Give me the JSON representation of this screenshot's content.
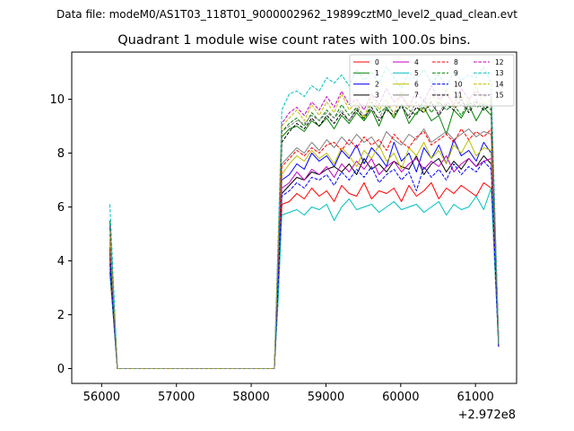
{
  "figure": {
    "suptitle": "Data file: modeM0/AS1T03_118T01_9000002962_19899cztM0_level2_quad_clean.evt"
  },
  "chart_data": {
    "type": "line",
    "title": "Quadrant 1 module wise count rates with 100.0s bins.",
    "xlabel": "",
    "ylabel": "",
    "x_offset_label": "+2.972e8",
    "xlim": [
      55600,
      61550
    ],
    "ylim": [
      -0.55,
      11.75
    ],
    "xticks": [
      56000,
      57000,
      58000,
      59000,
      60000,
      61000
    ],
    "yticks": [
      0,
      2,
      4,
      6,
      8,
      10
    ],
    "grid": false,
    "legend": {
      "placement": "top-right",
      "columns": 4
    },
    "x": [
      56110,
      56210,
      56310,
      56410,
      56510,
      56610,
      56710,
      56810,
      56910,
      57010,
      57110,
      57210,
      57310,
      57410,
      57510,
      57610,
      57710,
      57810,
      57910,
      58010,
      58110,
      58210,
      58310,
      58360,
      58410,
      58510,
      58610,
      58710,
      58810,
      58910,
      59010,
      59110,
      59210,
      59310,
      59410,
      59510,
      59610,
      59710,
      59810,
      59910,
      60010,
      60110,
      60210,
      60310,
      60410,
      60510,
      60610,
      60710,
      60810,
      60910,
      61010,
      61110,
      61210,
      61310
    ],
    "series": [
      {
        "name": "0",
        "color": "#ff0000",
        "dash": false,
        "values": [
          4.1,
          0,
          0,
          0,
          0,
          0,
          0,
          0,
          0,
          0,
          0,
          0,
          0,
          0,
          0,
          0,
          0,
          0,
          0,
          0,
          0,
          0,
          0,
          2.6,
          6.1,
          6.2,
          6.5,
          6.3,
          6.7,
          6.4,
          6.6,
          6.2,
          6.8,
          6.5,
          6.4,
          6.9,
          6.3,
          6.6,
          6.5,
          6.7,
          6.2,
          6.8,
          6.4,
          6.6,
          6.9,
          6.3,
          6.7,
          6.5,
          6.8,
          6.6,
          6.4,
          6.9,
          6.7,
          0.8
        ]
      },
      {
        "name": "1",
        "color": "#008000",
        "dash": false,
        "values": [
          5.5,
          0,
          0,
          0,
          0,
          0,
          0,
          0,
          0,
          0,
          0,
          0,
          0,
          0,
          0,
          0,
          0,
          0,
          0,
          0,
          0,
          0,
          0,
          4.2,
          8.6,
          8.9,
          9.0,
          8.8,
          9.2,
          9.0,
          9.3,
          8.9,
          9.4,
          9.1,
          9.5,
          9.2,
          9.6,
          9.0,
          9.7,
          9.3,
          9.8,
          9.1,
          9.5,
          9.7,
          9.2,
          9.4,
          8.7,
          9.6,
          9.3,
          9.8,
          9.2,
          9.7,
          9.4,
          0.9
        ]
      },
      {
        "name": "2",
        "color": "#0000ff",
        "dash": false,
        "values": [
          4.3,
          0,
          0,
          0,
          0,
          0,
          0,
          0,
          0,
          0,
          0,
          0,
          0,
          0,
          0,
          0,
          0,
          0,
          0,
          0,
          0,
          0,
          0,
          3.4,
          7.0,
          7.2,
          7.6,
          7.4,
          8.0,
          7.7,
          7.9,
          7.5,
          8.1,
          7.8,
          8.3,
          7.6,
          8.2,
          7.9,
          7.5,
          8.4,
          7.7,
          8.0,
          7.3,
          8.2,
          7.8,
          8.3,
          7.6,
          8.5,
          7.9,
          8.1,
          7.7,
          8.4,
          8.0,
          0.8
        ]
      },
      {
        "name": "3",
        "color": "#000000",
        "dash": false,
        "values": [
          3.6,
          0,
          0,
          0,
          0,
          0,
          0,
          0,
          0,
          0,
          0,
          0,
          0,
          0,
          0,
          0,
          0,
          0,
          0,
          0,
          0,
          0,
          0,
          3.2,
          6.5,
          6.8,
          7.1,
          7.0,
          7.3,
          7.2,
          7.4,
          7.5,
          7.3,
          7.6,
          7.2,
          7.8,
          7.4,
          7.6,
          7.3,
          7.7,
          7.5,
          7.4,
          7.9,
          7.2,
          7.6,
          7.8,
          7.3,
          7.7,
          7.4,
          7.8,
          7.5,
          7.9,
          7.6,
          0.8
        ]
      },
      {
        "name": "4",
        "color": "#c000c0",
        "dash": false,
        "values": [
          5.0,
          0,
          0,
          0,
          0,
          0,
          0,
          0,
          0,
          0,
          0,
          0,
          0,
          0,
          0,
          0,
          0,
          0,
          0,
          0,
          0,
          0,
          0,
          3.0,
          6.7,
          6.9,
          7.3,
          7.0,
          7.4,
          7.2,
          7.5,
          7.1,
          7.6,
          7.3,
          7.7,
          7.4,
          7.8,
          7.2,
          7.5,
          7.7,
          7.3,
          7.6,
          7.8,
          7.4,
          7.7,
          7.5,
          7.9,
          7.3,
          7.6,
          7.8,
          7.5,
          7.7,
          7.8,
          0.8
        ]
      },
      {
        "name": "5",
        "color": "#00bfbf",
        "dash": false,
        "values": [
          3.8,
          0,
          0,
          0,
          0,
          0,
          0,
          0,
          0,
          0,
          0,
          0,
          0,
          0,
          0,
          0,
          0,
          0,
          0,
          0,
          0,
          0,
          0,
          2.5,
          5.7,
          5.8,
          5.9,
          5.7,
          6.0,
          5.9,
          6.1,
          5.5,
          6.0,
          6.3,
          5.9,
          6.0,
          6.1,
          5.8,
          6.0,
          6.2,
          5.9,
          6.0,
          6.1,
          5.8,
          6.0,
          6.2,
          5.7,
          6.1,
          5.9,
          6.0,
          6.4,
          5.9,
          6.7,
          0.8
        ]
      },
      {
        "name": "6",
        "color": "#bfbf00",
        "dash": false,
        "values": [
          4.6,
          0,
          0,
          0,
          0,
          0,
          0,
          0,
          0,
          0,
          0,
          0,
          0,
          0,
          0,
          0,
          0,
          0,
          0,
          0,
          0,
          0,
          0,
          3.3,
          7.2,
          7.6,
          7.9,
          7.7,
          8.1,
          7.8,
          8.0,
          7.6,
          8.2,
          7.9,
          7.5,
          8.1,
          7.8,
          8.3,
          7.7,
          8.0,
          7.4,
          8.2,
          7.9,
          8.4,
          7.8,
          8.1,
          7.6,
          8.3,
          8.0,
          8.5,
          7.9,
          8.2,
          8.1,
          0.8
        ]
      },
      {
        "name": "7",
        "color": "#808080",
        "dash": false,
        "values": [
          4.8,
          0,
          0,
          0,
          0,
          0,
          0,
          0,
          0,
          0,
          0,
          0,
          0,
          0,
          0,
          0,
          0,
          0,
          0,
          0,
          0,
          0,
          0,
          3.7,
          7.6,
          7.9,
          8.2,
          8.0,
          8.4,
          8.1,
          8.5,
          8.2,
          8.6,
          8.3,
          8.7,
          8.4,
          8.6,
          8.2,
          8.8,
          8.5,
          8.3,
          8.7,
          8.5,
          8.9,
          8.4,
          8.6,
          8.8,
          8.5,
          8.7,
          8.9,
          8.6,
          8.8,
          8.7,
          0.8
        ]
      },
      {
        "name": "8",
        "color": "#ff0000",
        "dash": true,
        "values": [
          4.4,
          0,
          0,
          0,
          0,
          0,
          0,
          0,
          0,
          0,
          0,
          0,
          0,
          0,
          0,
          0,
          0,
          0,
          0,
          0,
          0,
          0,
          0,
          3.5,
          7.5,
          7.8,
          8.1,
          7.9,
          8.2,
          8.0,
          8.3,
          8.4,
          8.1,
          8.5,
          8.2,
          8.6,
          8.3,
          8.5,
          8.1,
          8.7,
          8.4,
          8.2,
          8.6,
          8.8,
          8.3,
          8.5,
          8.7,
          8.4,
          8.9,
          8.5,
          8.8,
          8.6,
          8.9,
          0.9
        ]
      },
      {
        "name": "9",
        "color": "#008000",
        "dash": true,
        "values": [
          5.2,
          0,
          0,
          0,
          0,
          0,
          0,
          0,
          0,
          0,
          0,
          0,
          0,
          0,
          0,
          0,
          0,
          0,
          0,
          0,
          0,
          0,
          0,
          4.3,
          8.8,
          9.1,
          9.3,
          9.0,
          9.5,
          9.2,
          9.6,
          9.3,
          9.8,
          9.4,
          9.7,
          9.2,
          9.9,
          9.5,
          9.7,
          9.3,
          9.8,
          9.6,
          9.4,
          10.0,
          9.5,
          9.9,
          9.6,
          9.8,
          9.4,
          9.9,
          9.7,
          9.8,
          9.6,
          1.0
        ]
      },
      {
        "name": "10",
        "color": "#0000ff",
        "dash": true,
        "values": [
          3.9,
          0,
          0,
          0,
          0,
          0,
          0,
          0,
          0,
          0,
          0,
          0,
          0,
          0,
          0,
          0,
          0,
          0,
          0,
          0,
          0,
          0,
          0,
          3.1,
          6.4,
          6.6,
          6.9,
          6.7,
          7.1,
          7.0,
          7.2,
          6.8,
          7.3,
          7.0,
          7.4,
          7.1,
          7.5,
          6.9,
          7.2,
          7.4,
          7.0,
          7.3,
          6.6,
          7.5,
          7.1,
          7.4,
          7.0,
          7.6,
          7.2,
          7.5,
          7.3,
          7.7,
          7.4,
          0.8
        ]
      },
      {
        "name": "11",
        "color": "#000000",
        "dash": true,
        "values": [
          4.5,
          0,
          0,
          0,
          0,
          0,
          0,
          0,
          0,
          0,
          0,
          0,
          0,
          0,
          0,
          0,
          0,
          0,
          0,
          0,
          0,
          0,
          0,
          4.0,
          8.4,
          8.8,
          9.1,
          8.9,
          9.3,
          9.0,
          9.4,
          9.1,
          9.5,
          9.2,
          9.6,
          9.3,
          9.7,
          9.2,
          9.6,
          9.4,
          9.8,
          9.3,
          9.7,
          9.5,
          9.9,
          9.4,
          9.8,
          9.6,
          10.0,
          9.5,
          9.9,
          9.6,
          9.8,
          1.0
        ]
      },
      {
        "name": "12",
        "color": "#c000c0",
        "dash": true,
        "values": [
          5.3,
          0,
          0,
          0,
          0,
          0,
          0,
          0,
          0,
          0,
          0,
          0,
          0,
          0,
          0,
          0,
          0,
          0,
          0,
          0,
          0,
          0,
          0,
          4.5,
          9.1,
          9.5,
          9.7,
          9.4,
          9.9,
          9.6,
          10.1,
          9.7,
          10.3,
          9.8,
          10.0,
          9.6,
          10.2,
          9.8,
          10.4,
          9.9,
          10.1,
          9.7,
          10.3,
          9.9,
          10.5,
          10.0,
          10.2,
          9.8,
          10.4,
          10.0,
          10.3,
          10.1,
          10.2,
          1.0
        ]
      },
      {
        "name": "13",
        "color": "#00bfbf",
        "dash": true,
        "values": [
          6.1,
          0,
          0,
          0,
          0,
          0,
          0,
          0,
          0,
          0,
          0,
          0,
          0,
          0,
          0,
          0,
          0,
          0,
          0,
          0,
          0,
          0,
          0,
          4.8,
          9.6,
          10.2,
          10.3,
          10.1,
          10.5,
          10.3,
          10.8,
          10.6,
          10.9,
          10.5,
          11.1,
          10.7,
          11.0,
          10.6,
          11.2,
          10.8,
          10.4,
          11.0,
          10.7,
          11.1,
          10.6,
          10.9,
          10.5,
          11.0,
          10.7,
          10.9,
          10.8,
          11.2,
          10.6,
          0.9
        ]
      },
      {
        "name": "14",
        "color": "#bfbf00",
        "dash": true,
        "values": [
          5.1,
          0,
          0,
          0,
          0,
          0,
          0,
          0,
          0,
          0,
          0,
          0,
          0,
          0,
          0,
          0,
          0,
          0,
          0,
          0,
          0,
          0,
          0,
          4.4,
          9.0,
          9.3,
          9.6,
          9.2,
          9.8,
          9.4,
          9.9,
          9.5,
          10.2,
          9.6,
          9.9,
          9.3,
          10.1,
          9.6,
          10.0,
          9.4,
          10.3,
          9.7,
          9.9,
          9.5,
          10.2,
          9.8,
          10.4,
          9.7,
          10.1,
          9.9,
          10.5,
          9.8,
          10.0,
          1.0
        ]
      },
      {
        "name": "15",
        "color": "#808080",
        "dash": true,
        "values": [
          4.7,
          0,
          0,
          0,
          0,
          0,
          0,
          0,
          0,
          0,
          0,
          0,
          0,
          0,
          0,
          0,
          0,
          0,
          0,
          0,
          0,
          0,
          0,
          4.1,
          8.8,
          9.0,
          9.2,
          9.1,
          9.4,
          9.2,
          9.5,
          9.3,
          9.6,
          9.2,
          9.7,
          9.4,
          9.6,
          9.3,
          9.8,
          9.5,
          9.7,
          9.4,
          9.9,
          9.6,
          9.8,
          9.5,
          9.9,
          9.7,
          9.8,
          9.6,
          10.0,
          9.7,
          9.9,
          0.9
        ]
      }
    ]
  }
}
